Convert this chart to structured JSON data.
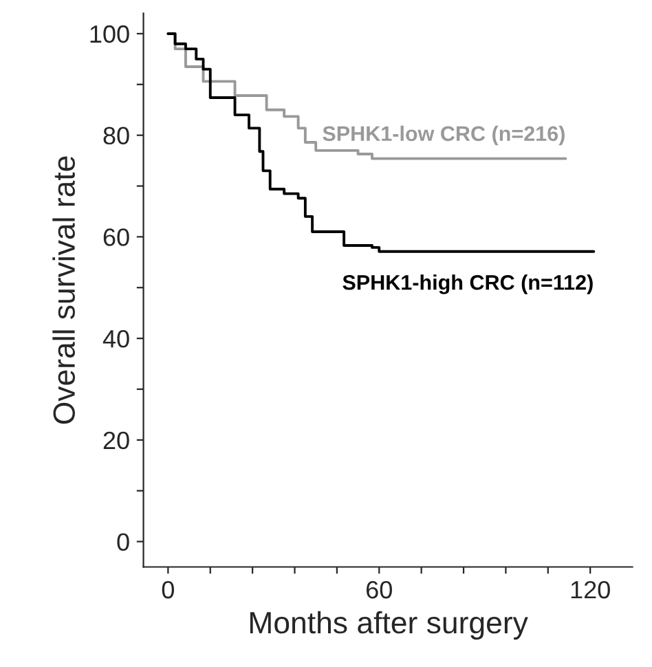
{
  "chart_data": {
    "type": "step",
    "xlabel": "Months after surgery",
    "ylabel": "Overall survival rate",
    "xlim": [
      -7,
      132
    ],
    "ylim": [
      -5,
      104
    ],
    "xticks": [
      0,
      {
        "value": 12,
        "label": null
      },
      {
        "value": 24,
        "label": null
      },
      {
        "value": 36,
        "label": null
      },
      {
        "value": 48,
        "label": null
      },
      60,
      {
        "value": 72,
        "label": null
      },
      {
        "value": 84,
        "label": null
      },
      {
        "value": 96,
        "label": null
      },
      {
        "value": 108,
        "label": null
      },
      120
    ],
    "yticks": [
      0,
      {
        "value": 10,
        "label": null
      },
      20,
      {
        "value": 30,
        "label": null
      },
      40,
      {
        "value": 50,
        "label": null
      },
      60,
      {
        "value": 70,
        "label": null
      },
      80,
      {
        "value": 90,
        "label": null
      },
      100
    ],
    "grid": false,
    "legend": false,
    "line_style": "solid",
    "series": [
      {
        "name": "SPHK1-low CRC (n=216)",
        "color": "#999999",
        "x": [
          0,
          2,
          5,
          10,
          19,
          28,
          33,
          37,
          39,
          42,
          54,
          58,
          113
        ],
        "values": [
          100,
          97,
          93.5,
          90.6,
          87.8,
          85,
          83.7,
          81.4,
          78.6,
          77,
          76.3,
          75.4,
          75.4
        ]
      },
      {
        "name": "SPHK1-high CRC (n=112)",
        "color": "#000000",
        "x": [
          0,
          2,
          5,
          8,
          10,
          12,
          19,
          23,
          26,
          27,
          29,
          33,
          37,
          39,
          41,
          48,
          50,
          58,
          60,
          121
        ],
        "values": [
          100,
          98,
          97,
          95,
          93,
          87.4,
          84,
          81.4,
          76.8,
          73,
          69.4,
          68.5,
          67.6,
          64,
          61,
          61,
          58.3,
          57.9,
          57.1,
          57.1
        ]
      }
    ]
  }
}
